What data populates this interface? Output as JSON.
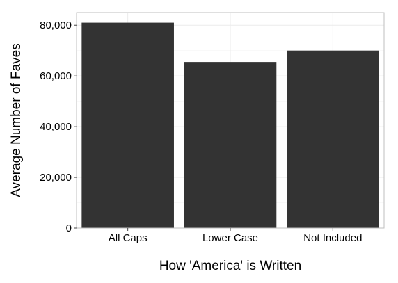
{
  "chart_data": {
    "type": "bar",
    "title": "",
    "xlabel": "How 'America' is Written",
    "ylabel": "Average Number of Faves",
    "categories": [
      "All Caps",
      "Lower Case",
      "Not Included"
    ],
    "values": [
      81000,
      65500,
      70000
    ],
    "ylim": [
      0,
      85000
    ],
    "yticks": [
      0,
      20000,
      40000,
      60000,
      80000
    ],
    "ytick_labels": [
      "0",
      "20,000",
      "40,000",
      "60,000",
      "80,000"
    ],
    "grid": true,
    "legend": "none",
    "colors": {
      "bar": "#333333",
      "panel_border": "#bfbfbf",
      "grid_major": "#ebebeb",
      "grid_minor": "#f5f5f5",
      "tick": "#444444"
    }
  }
}
